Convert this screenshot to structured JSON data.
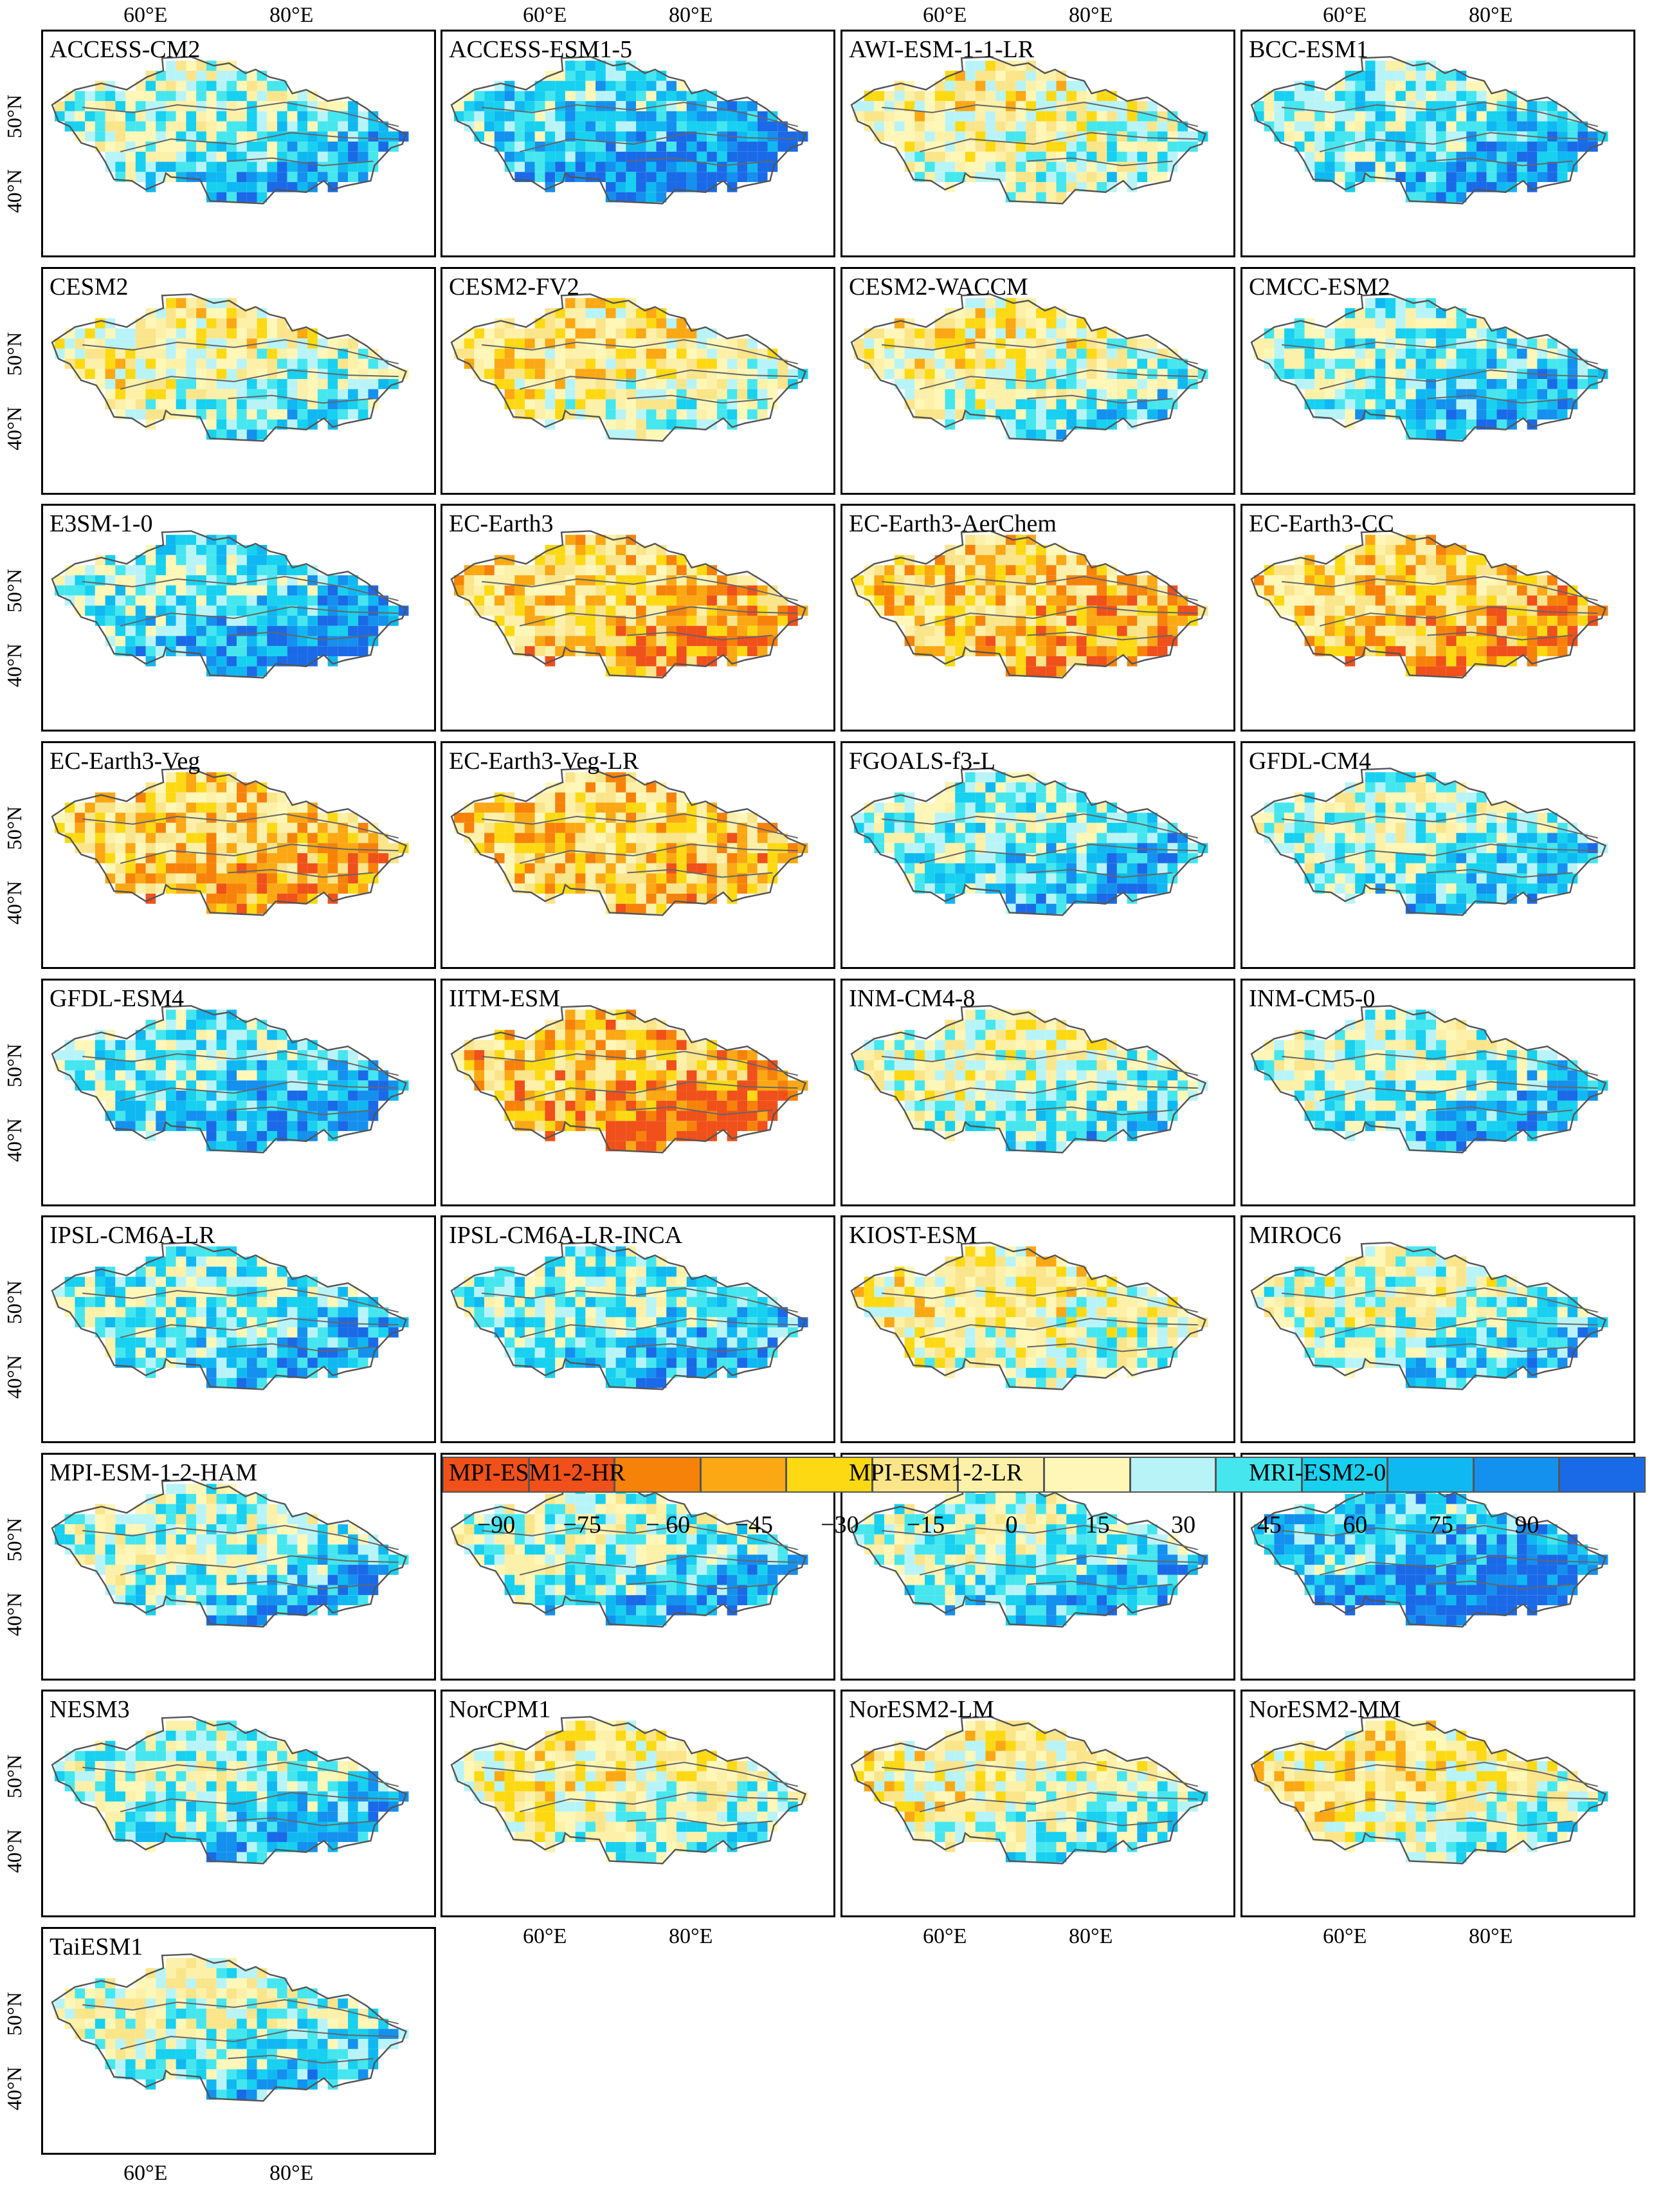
{
  "figure": {
    "panels": [
      "ACCESS-CM2",
      "ACCESS-ESM1-5",
      "AWI-ESM-1-1-LR",
      "BCC-ESM1",
      "CESM2",
      "CESM2-FV2",
      "CESM2-WACCM",
      "CMCC-ESM2",
      "E3SM-1-0",
      "EC-Earth3",
      "EC-Earth3-AerChem",
      "EC-Earth3-CC",
      "EC-Earth3-Veg",
      "EC-Earth3-Veg-LR",
      "FGOALS-f3-L",
      "GFDL-CM4",
      "GFDL-ESM4",
      "IITM-ESM",
      "INM-CM4-8",
      "INM-CM5-0",
      "IPSL-CM6A-LR",
      "IPSL-CM6A-LR-INCA",
      "KIOST-ESM",
      "MIROC6",
      "MPI-ESM-1-2-HAM",
      "MPI-ESM1-2-HR",
      "MPI-ESM1-2-LR",
      "MRI-ESM2-0",
      "NESM3",
      "NorCPM1",
      "NorESM2-LM",
      "NorESM2-MM",
      "TaiESM1"
    ],
    "lon_labels": [
      "60°E",
      "80°E"
    ],
    "lat_labels": [
      "50°N",
      "40°N"
    ]
  },
  "colorbar": {
    "colors": [
      "#f0501a",
      "#f7820a",
      "#fba814",
      "#fdd914",
      "#fbe58a",
      "#fdf0a8",
      "#fff7b8",
      "#b8f4f7",
      "#46e6ef",
      "#18d0f0",
      "#10b8f2",
      "#1490ee",
      "#1a6ae8"
    ],
    "tick_labels": [
      "−90",
      "−75",
      "− 60",
      "−45",
      "−30",
      "−15",
      "0",
      "15",
      "30",
      "45",
      "60",
      "75",
      "90"
    ]
  }
}
